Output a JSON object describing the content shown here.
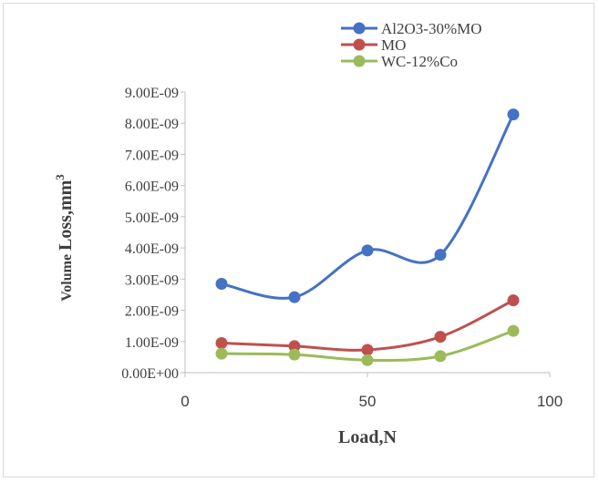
{
  "chart_data": {
    "type": "line",
    "xlabel": "Load,N",
    "ylabel": "Volume Loss,mm",
    "ylabel_superscript": "3",
    "xlim": [
      0,
      100
    ],
    "ylim": [
      0,
      9e-09
    ],
    "x_ticks": [
      {
        "value": 0,
        "label": "0"
      },
      {
        "value": 50,
        "label": "50"
      },
      {
        "value": 100,
        "label": "100"
      }
    ],
    "y_ticks": [
      {
        "value": 0,
        "label": "0.00E+00"
      },
      {
        "value": 1e-09,
        "label": "1.00E-09"
      },
      {
        "value": 2e-09,
        "label": "2.00E-09"
      },
      {
        "value": 3e-09,
        "label": "3.00E-09"
      },
      {
        "value": 4e-09,
        "label": "4.00E-09"
      },
      {
        "value": 5e-09,
        "label": "5.00E-09"
      },
      {
        "value": 6e-09,
        "label": "6.00E-09"
      },
      {
        "value": 7e-09,
        "label": "7.00E-09"
      },
      {
        "value": 8e-09,
        "label": "8.00E-09"
      },
      {
        "value": 9e-09,
        "label": "9.00E-09"
      }
    ],
    "grid": false,
    "smooth": true,
    "legend_position": "top-right",
    "x": [
      10,
      30,
      50,
      70,
      90
    ],
    "series": [
      {
        "name": "Al2O3-30%MO",
        "color": "#4472c4",
        "values": [
          2.85e-09,
          2.42e-09,
          3.92e-09,
          3.78e-09,
          8.28e-09
        ]
      },
      {
        "name": "MO",
        "color": "#c0504d",
        "values": [
          9.5e-10,
          8.5e-10,
          7.3e-10,
          1.15e-09,
          2.32e-09
        ]
      },
      {
        "name": "WC-12%Co",
        "color": "#9bbb59",
        "values": [
          6.1e-10,
          5.8e-10,
          4e-10,
          5.3e-10,
          1.34e-09
        ]
      }
    ]
  }
}
